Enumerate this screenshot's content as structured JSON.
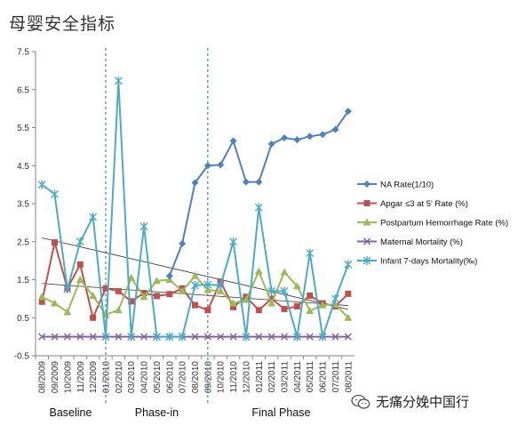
{
  "title": "母婴安全指标",
  "watermark": {
    "text": "无痛分娩中国行",
    "icon": "wechat-icon"
  },
  "chart_data": {
    "type": "line",
    "title": "母婴安全指标",
    "xlabel": "",
    "ylabel": "",
    "ylim": [
      -0.5,
      7.5
    ],
    "yticks": [
      -0.5,
      0.5,
      1.5,
      2.5,
      3.5,
      4.5,
      5.5,
      6.5,
      7.5
    ],
    "grid": false,
    "legend_position": "right",
    "categories": [
      "08/2009",
      "09/2009",
      "10/2009",
      "11/2009",
      "12/2009",
      "01/2010",
      "02/2010",
      "03/2010",
      "04/2010",
      "05/2010",
      "06/2010",
      "07/2010",
      "08/2010",
      "09/2010",
      "10/2010",
      "11/2010",
      "12/2010",
      "01/2011",
      "02/2011",
      "03/2011",
      "04/2011",
      "05/2011",
      "06/2011",
      "07/2011",
      "08/2011"
    ],
    "phases": [
      {
        "label": "Baseline",
        "start_index": 0,
        "end_index": 5
      },
      {
        "label": "Phase-in",
        "start_index": 5,
        "end_index": 13
      },
      {
        "label": "Final Phase",
        "start_index": 13,
        "end_index": 24
      }
    ],
    "series": [
      {
        "name": "NA Rate(1/10)",
        "color": "#4F81BD",
        "marker": "diamond",
        "values": [
          null,
          null,
          null,
          null,
          null,
          null,
          null,
          null,
          null,
          null,
          1.6,
          2.45,
          4.05,
          4.5,
          4.52,
          5.15,
          4.07,
          4.07,
          5.07,
          5.23,
          5.18,
          5.27,
          5.32,
          5.45,
          5.93
        ]
      },
      {
        "name": "Apgar ≤3 at 5' Rate (%)",
        "color": "#C0504D",
        "marker": "square",
        "values": [
          0.92,
          2.48,
          1.27,
          1.9,
          0.5,
          1.27,
          1.2,
          0.93,
          1.15,
          1.07,
          1.12,
          1.27,
          0.83,
          0.7,
          1.45,
          0.78,
          1.05,
          0.7,
          1.0,
          0.73,
          0.8,
          1.08,
          0.88,
          0.8,
          1.13
        ]
      },
      {
        "name": "Postpartum Hemorrhage Rate (%)",
        "color": "#9BBB59",
        "marker": "triangle",
        "values": [
          1.05,
          0.88,
          0.65,
          1.5,
          1.08,
          0.58,
          0.7,
          1.55,
          1.05,
          1.47,
          1.5,
          1.2,
          1.6,
          1.23,
          1.2,
          0.88,
          0.97,
          1.72,
          0.88,
          1.7,
          1.33,
          0.68,
          0.83,
          0.85,
          0.5
        ]
      },
      {
        "name": "Maternal Mortality (%)",
        "color": "#8064A2",
        "marker": "x",
        "values": [
          0,
          0,
          0,
          0,
          0,
          0,
          0,
          0,
          0,
          0,
          0,
          0,
          0,
          0,
          0,
          0,
          0,
          0,
          0,
          0,
          0,
          0,
          0,
          0,
          0
        ]
      },
      {
        "name": "Infant 7-days Mortality(‰)",
        "color": "#4BACC6",
        "marker": "star",
        "values": [
          4.0,
          3.75,
          1.25,
          2.5,
          3.15,
          0.0,
          6.73,
          0.0,
          2.9,
          0.0,
          0.0,
          0.0,
          1.35,
          1.37,
          1.35,
          2.5,
          0.0,
          3.4,
          1.2,
          1.2,
          0.0,
          2.2,
          0.0,
          1.0,
          1.9
        ]
      }
    ],
    "trendlines": [
      {
        "color": "#333333",
        "from": {
          "index": 0,
          "value": 2.6
        },
        "to": {
          "index": 24,
          "value": 0.72
        }
      },
      {
        "color": "#333333",
        "from": {
          "index": 0,
          "value": 1.4
        },
        "to": {
          "index": 24,
          "value": 0.82
        }
      }
    ]
  }
}
